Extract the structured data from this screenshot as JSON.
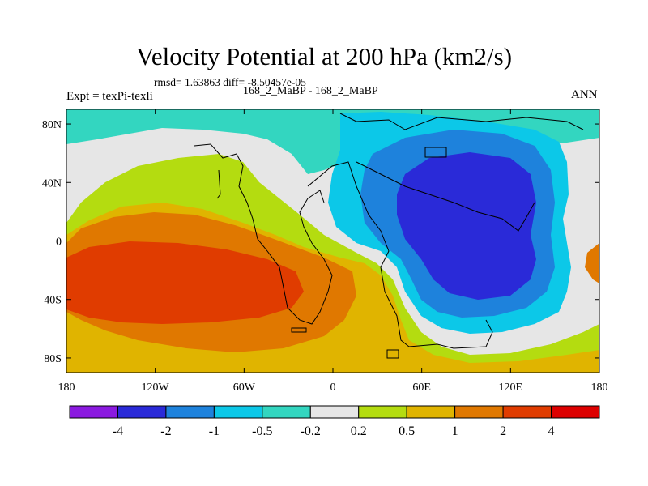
{
  "header": {
    "title": "Velocity Potential at 200 hPa (km2/s)",
    "stats": "rmsd= 1.63863 diff= -8.50457e-05",
    "left_label": "Expt = texPi-texli",
    "center_label": "168_2_MaBP - 168_2_MaBP",
    "right_label": "ANN"
  },
  "chart_data": {
    "type": "heatmap",
    "title": "Velocity Potential at 200 hPa (km2/s)",
    "x_axis": {
      "ticks": [
        -180,
        -120,
        -60,
        0,
        60,
        120,
        180
      ],
      "tick_labels": [
        "180",
        "120W",
        "60W",
        "0",
        "60E",
        "120E",
        "180"
      ],
      "range": [
        -180,
        180
      ]
    },
    "y_axis": {
      "ticks": [
        80,
        40,
        0,
        -40,
        -80
      ],
      "tick_labels": [
        "80N",
        "40N",
        "0",
        "40S",
        "80S"
      ],
      "range": [
        -90,
        90
      ]
    },
    "colorbar": {
      "levels": [
        "-4",
        "-2",
        "-1",
        "-0.5",
        "-0.2",
        "0.2",
        "0.5",
        "1",
        "2",
        "4"
      ],
      "colors": [
        "#8b1ae0",
        "#2a2ad8",
        "#1e82dc",
        "#0cc8e8",
        "#33d6c0",
        "#e6e6e6",
        "#b4dc10",
        "#e0b400",
        "#e07800",
        "#e03c00",
        "#dd0000"
      ]
    }
  }
}
